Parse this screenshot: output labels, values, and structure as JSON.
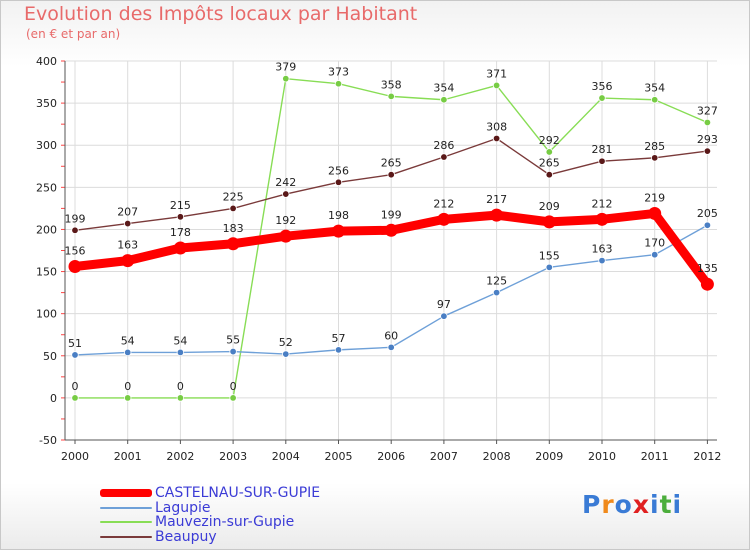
{
  "header": {
    "title": "Evolution des Impôts locaux par Habitant",
    "subtitle": "(en € et par an)"
  },
  "chart_data": {
    "type": "line",
    "title": "Evolution des Impôts locaux par Habitant",
    "subtitle": "(en € et par an)",
    "xlabel": "",
    "ylabel": "",
    "categories": [
      "2000",
      "2001",
      "2002",
      "2003",
      "2004",
      "2005",
      "2006",
      "2007",
      "2008",
      "2009",
      "2010",
      "2011",
      "2012"
    ],
    "ylim": [
      -50,
      400
    ],
    "yticks": [
      -50,
      0,
      50,
      100,
      150,
      200,
      250,
      300,
      350,
      400
    ],
    "grid": true,
    "legend_position": "bottom-left",
    "series": [
      {
        "name": "Mauvezin-sur-Gupie",
        "color": "#88dd55",
        "point_color": "#77cc44",
        "width": 1.4,
        "radius": 3.3,
        "values": [
          0,
          0,
          0,
          0,
          379,
          373,
          358,
          354,
          371,
          292,
          356,
          354,
          327
        ]
      },
      {
        "name": "Beaupuy",
        "color": "#7a3a3a",
        "point_color": "#5a1818",
        "width": 1.4,
        "radius": 3.3,
        "values": [
          199,
          207,
          215,
          225,
          242,
          256,
          265,
          286,
          308,
          265,
          281,
          285,
          293
        ]
      },
      {
        "name": "Lagupie",
        "color": "#6ea0d8",
        "point_color": "#4a7fc4",
        "width": 1.4,
        "radius": 3.3,
        "values": [
          51,
          54,
          54,
          55,
          52,
          57,
          60,
          97,
          125,
          155,
          163,
          170,
          205
        ]
      },
      {
        "name": "CASTELNAU-SUR-GUPIE",
        "color": "#ff0000",
        "point_color": "#ff0000",
        "width": 9,
        "radius": 6.5,
        "values": [
          156,
          163,
          178,
          183,
          192,
          198,
          199,
          212,
          217,
          209,
          212,
          219,
          135
        ]
      }
    ],
    "legend_order": [
      "CASTELNAU-SUR-GUPIE",
      "Lagupie",
      "Mauvezin-sur-Gupie",
      "Beaupuy"
    ]
  },
  "legend": {
    "items": [
      {
        "label": "CASTELNAU-SUR-GUPIE",
        "color": "#ff0000"
      },
      {
        "label": "Lagupie",
        "color": "#6ea0d8"
      },
      {
        "label": "Mauvezin-sur-Gupie",
        "color": "#88dd55"
      },
      {
        "label": "Beaupuy",
        "color": "#7a3a3a"
      }
    ]
  },
  "logo": {
    "text": "Proxiti",
    "colors": [
      "#3a7bd5",
      "#f08a1c",
      "#3a7bd5",
      "#e02020",
      "#3a7bd5",
      "#4cae3c",
      "#3a7bd5"
    ]
  }
}
